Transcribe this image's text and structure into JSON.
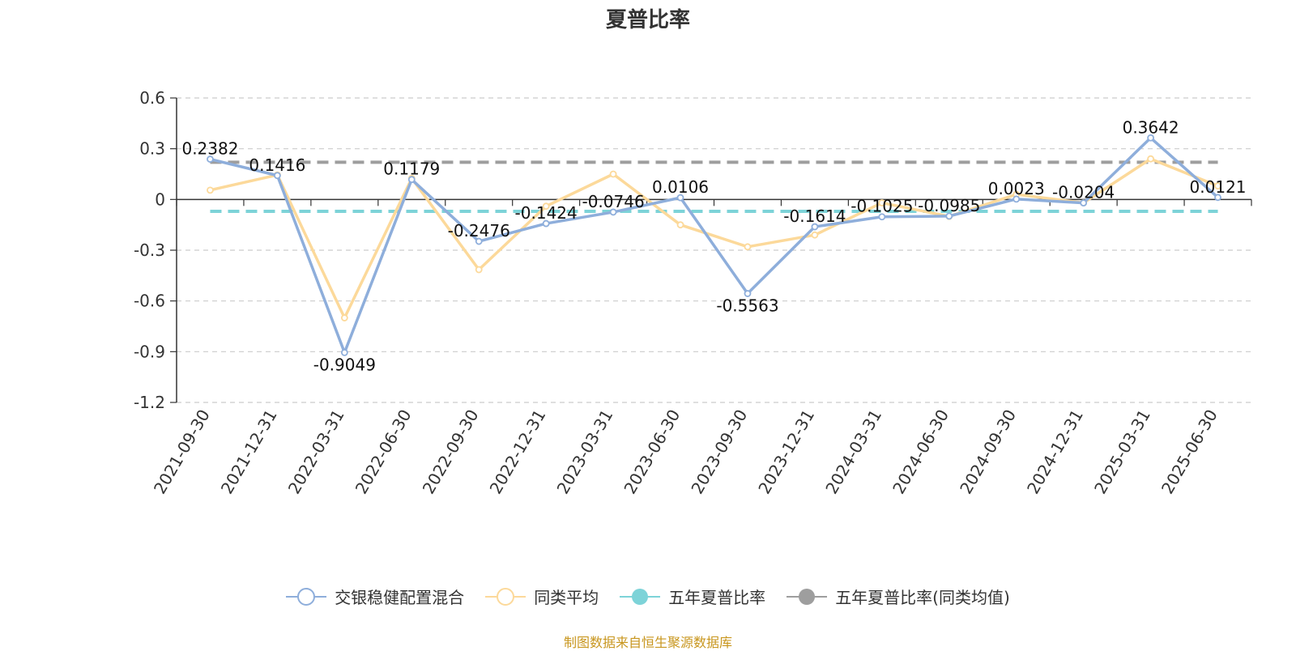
{
  "colors": {
    "fund": "#8eaedb",
    "peer": "#fcd99a",
    "five_year": "#7dd3d8",
    "five_year_peer": "#9e9e9e",
    "source_text": "#c8961e"
  },
  "chart_data": {
    "type": "line",
    "title": "夏普比率",
    "categories": [
      "2021-09-30",
      "2021-12-31",
      "2022-03-31",
      "2022-06-30",
      "2022-09-30",
      "2022-12-31",
      "2023-03-31",
      "2023-06-30",
      "2023-09-30",
      "2023-12-31",
      "2024-03-31",
      "2024-06-30",
      "2024-09-30",
      "2024-12-31",
      "2025-03-31",
      "2025-06-30"
    ],
    "ylim": [
      -1.2,
      0.6
    ],
    "yticks": [
      0.6,
      0.3,
      0,
      -0.3,
      -0.6,
      -0.9,
      -1.2
    ],
    "grid": true,
    "legend_position": "bottom",
    "series": [
      {
        "name": "交银稳健配置混合",
        "values": [
          0.2382,
          0.1416,
          -0.9049,
          0.1179,
          -0.2476,
          -0.1424,
          -0.0746,
          0.0106,
          -0.5563,
          -0.1614,
          -0.1025,
          -0.0985,
          0.0023,
          -0.0204,
          0.3642,
          0.0121
        ],
        "labels": [
          "0.2382",
          "0.1416",
          "-0.9049",
          "0.1179",
          "-0.2476",
          "-0.1424",
          "-0.0746",
          "0.0106",
          "-0.5563",
          "-0.1614",
          "-0.1025",
          "-0.0985",
          "0.0023",
          "-0.0204",
          "0.3642",
          "0.0121"
        ]
      },
      {
        "name": "同类平均",
        "values": [
          0.055,
          0.145,
          -0.7,
          0.125,
          -0.415,
          -0.04,
          0.15,
          -0.15,
          -0.28,
          -0.21,
          -0.02,
          -0.1,
          0.03,
          -0.02,
          0.24,
          0.08
        ]
      },
      {
        "name": "五年夏普比率",
        "constant": -0.07
      },
      {
        "name": "五年夏普比率(同类均值)",
        "constant": 0.22
      }
    ]
  },
  "source": "制图数据来自恒生聚源数据库"
}
